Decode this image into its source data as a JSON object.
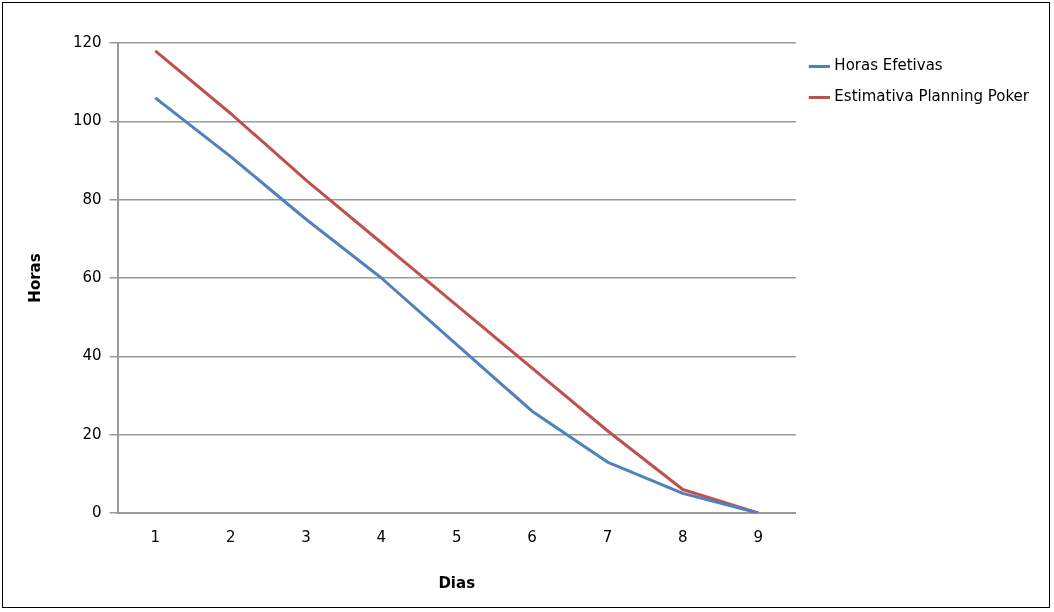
{
  "chart_data": {
    "type": "line",
    "xlabel": "Dias",
    "ylabel": "Horas",
    "categories": [
      "1",
      "2",
      "3",
      "4",
      "5",
      "6",
      "7",
      "8",
      "9"
    ],
    "series": [
      {
        "name": "Horas Efetivas",
        "color": "#4f81bd",
        "values": [
          106,
          91,
          75,
          60,
          43,
          26,
          13,
          5,
          0
        ]
      },
      {
        "name": "Estimativa Planning Poker",
        "color": "#c0504d",
        "values": [
          118,
          102,
          85,
          69,
          53,
          37,
          21,
          6,
          0
        ]
      }
    ],
    "ylim": [
      0,
      120
    ],
    "yticks": [
      0,
      20,
      40,
      60,
      80,
      100,
      120
    ],
    "grid": "y",
    "legend": "top right",
    "marker": "none",
    "line_style": "solid"
  }
}
